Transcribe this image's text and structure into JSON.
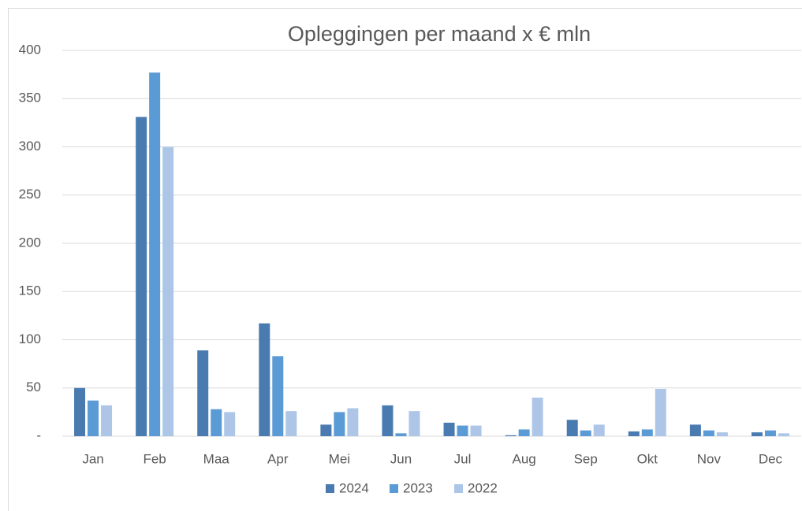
{
  "chart_data": {
    "type": "bar",
    "title": "Opleggingen per maand x € mln",
    "categories": [
      "Jan",
      "Feb",
      "Maa",
      "Apr",
      "Mei",
      "Jun",
      "Jul",
      "Aug",
      "Sep",
      "Okt",
      "Nov",
      "Dec"
    ],
    "series": [
      {
        "name": "2024",
        "color": "#4a7bb0",
        "values": [
          50,
          331,
          89,
          117,
          12,
          32,
          14,
          1,
          17,
          5,
          12,
          4
        ]
      },
      {
        "name": "2023",
        "color": "#5b9bd5",
        "values": [
          37,
          377,
          28,
          83,
          25,
          3,
          11,
          7,
          6,
          7,
          6,
          6
        ]
      },
      {
        "name": "2022",
        "color": "#adc6e8",
        "values": [
          32,
          300,
          25,
          26,
          29,
          26,
          11,
          40,
          12,
          49,
          4,
          3
        ]
      }
    ],
    "ylim": [
      0,
      400
    ],
    "yticks": [
      {
        "value": 0,
        "label": "-"
      },
      50,
      100,
      150,
      200,
      250,
      300,
      350,
      400
    ],
    "grid": true,
    "legend": "bottom"
  }
}
